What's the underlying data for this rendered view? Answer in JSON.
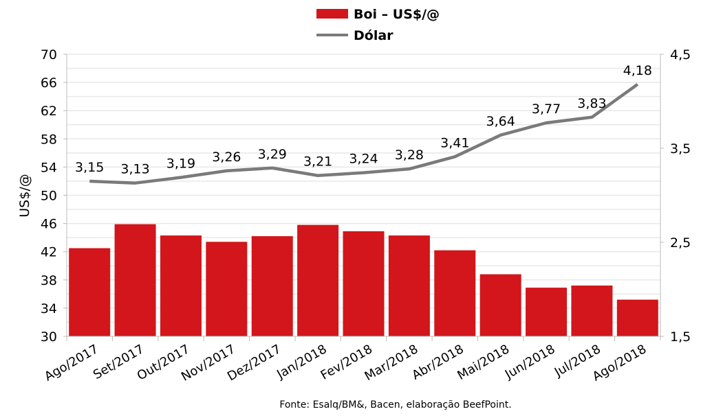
{
  "chart_data": {
    "type": "bar+line",
    "categories": [
      "Ago/2017",
      "Set/2017",
      "Out/2017",
      "Nov/2017",
      "Dez/2017",
      "Jan/2018",
      "Fev/2018",
      "Mar/2018",
      "Abr/2018",
      "Mai/2018",
      "Jun/2018",
      "Jul/2018",
      "Ago/2018"
    ],
    "series": [
      {
        "name": "Boi – US$/@",
        "type": "bar",
        "axis": "left",
        "color": "#d2161b",
        "values": [
          42.5,
          45.9,
          44.3,
          43.4,
          44.2,
          45.8,
          44.9,
          44.3,
          42.2,
          38.8,
          36.9,
          37.2,
          35.2
        ]
      },
      {
        "name": "Dólar",
        "type": "line",
        "axis": "right",
        "color": "#7a7a7a",
        "values": [
          3.15,
          3.13,
          3.19,
          3.26,
          3.29,
          3.21,
          3.24,
          3.28,
          3.41,
          3.64,
          3.77,
          3.83,
          4.18
        ],
        "labels": [
          "3,15",
          "3,13",
          "3,19",
          "3,26",
          "3,29",
          "3,21",
          "3,24",
          "3,28",
          "3,41",
          "3,64",
          "3,77",
          "3,83",
          "4,18"
        ]
      }
    ],
    "ylabel": "US$/@",
    "ylim": [
      30,
      70
    ],
    "yticks": [
      30,
      34,
      38,
      42,
      46,
      50,
      54,
      58,
      62,
      66,
      70
    ],
    "y2lim": [
      1.5,
      4.5
    ],
    "y2ticks": [
      "1,5",
      "2,5",
      "3,5",
      "4,5"
    ],
    "grid": true,
    "legend": "top-center",
    "source": "Fonte: Esalq/BM&, Bacen, elaboração BeefPoint."
  }
}
